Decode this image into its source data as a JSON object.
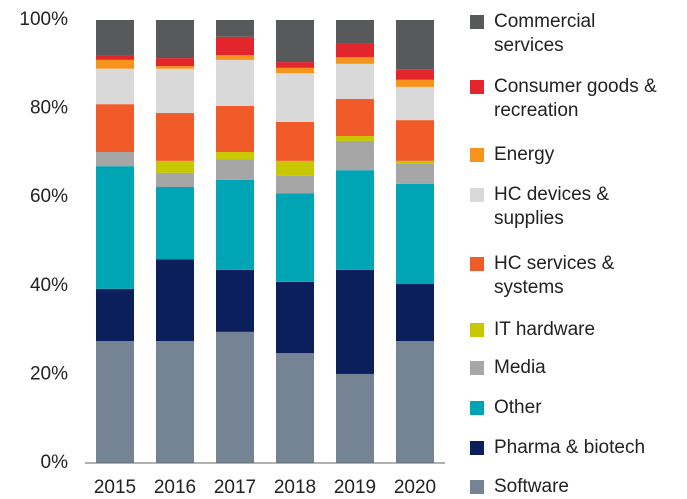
{
  "chart_data": {
    "type": "stacked_bar",
    "categories": [
      "2015",
      "2016",
      "2017",
      "2018",
      "2019",
      "2020"
    ],
    "series": [
      {
        "name": "Commercial services",
        "color": "#58595b",
        "values": [
          8,
          8.6,
          3.8,
          9.5,
          5.2,
          11.1
        ]
      },
      {
        "name": "Consumer goods & recreation",
        "color": "#e3262c",
        "values": [
          1,
          1.8,
          4.1,
          1.3,
          3.2,
          2.4
        ]
      },
      {
        "name": "Energy",
        "color": "#f7941d",
        "values": [
          2,
          0.6,
          1.1,
          1.2,
          1.5,
          1.6
        ]
      },
      {
        "name": "HC devices & supplies",
        "color": "#d9d9d9",
        "values": [
          8,
          10,
          10.4,
          11,
          7.9,
          7.5
        ]
      },
      {
        "name": "HC services & systems",
        "color": "#f15a29",
        "values": [
          10.8,
          10.8,
          10.4,
          8.8,
          8.4,
          9.2
        ]
      },
      {
        "name": "IT hardware",
        "color": "#c8c800",
        "values": [
          0,
          2.7,
          1.6,
          3.4,
          1.1,
          0.7
        ]
      },
      {
        "name": "Media",
        "color": "#a6a6a6",
        "values": [
          3.2,
          3.2,
          4.7,
          3.9,
          6.6,
          4.5
        ]
      },
      {
        "name": "Other",
        "color": "#00a5b5",
        "values": [
          27.7,
          16.3,
          20.3,
          20,
          22.5,
          22.6
        ]
      },
      {
        "name": "Pharma & biotech",
        "color": "#0a1f5c",
        "values": [
          11.8,
          18.5,
          14,
          16.1,
          23.5,
          12.9
        ]
      },
      {
        "name": "Software",
        "color": "#748494",
        "values": [
          27.5,
          27.5,
          29.6,
          24.8,
          20.1,
          27.5
        ]
      }
    ],
    "ylim": [
      0,
      100
    ],
    "yticks": [
      {
        "value": 0,
        "label": "0%"
      },
      {
        "value": 20,
        "label": "20%"
      },
      {
        "value": 40,
        "label": "40%"
      },
      {
        "value": 60,
        "label": "60%"
      },
      {
        "value": 80,
        "label": "80%"
      },
      {
        "value": 100,
        "label": "100%"
      }
    ],
    "grid": false
  }
}
